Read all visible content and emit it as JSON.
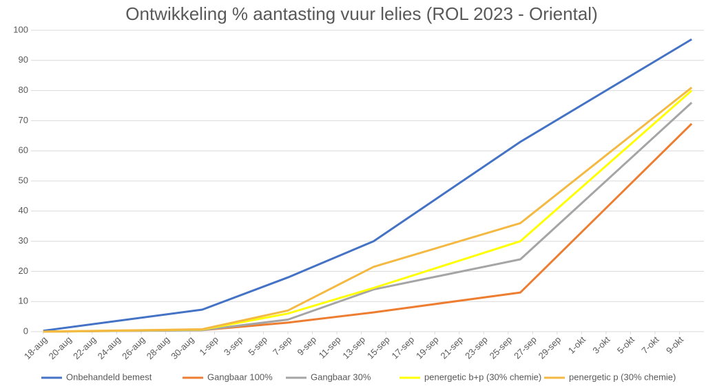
{
  "chart_data": {
    "type": "line",
    "title": "Ontwikkeling % aantasting vuur lelies (ROL 2023 - Oriental)",
    "x": [
      "18-aug",
      "31-aug",
      "7-sep",
      "14-sep",
      "26-sep",
      "10-okt"
    ],
    "xlim": [
      "17-aug",
      "11-okt"
    ],
    "xticks": [
      "18-aug",
      "20-aug",
      "22-aug",
      "24-aug",
      "26-aug",
      "28-aug",
      "30-aug",
      "1-sep",
      "3-sep",
      "5-sep",
      "7-sep",
      "9-sep",
      "11-sep",
      "13-sep",
      "15-sep",
      "17-sep",
      "19-sep",
      "21-sep",
      "23-sep",
      "25-sep",
      "27-sep",
      "29-sep",
      "1-okt",
      "3-okt",
      "5-okt",
      "7-okt",
      "9-okt"
    ],
    "ylim": [
      0,
      100
    ],
    "yticks": [
      0,
      10,
      20,
      30,
      40,
      50,
      60,
      70,
      80,
      90,
      100
    ],
    "grid": true,
    "legend": "bottom",
    "series": [
      {
        "name": "Onbehandeld bemest",
        "color": "#4472c4",
        "values": [
          0.3,
          7.3,
          18,
          30,
          63,
          97
        ]
      },
      {
        "name": "Gangbaar 100%",
        "color": "#ed7d31",
        "values": [
          0,
          0.5,
          3,
          6.4,
          13,
          69
        ]
      },
      {
        "name": "Gangbaar 30%",
        "color": "#a5a5a5",
        "values": [
          0,
          0.5,
          4,
          14,
          24,
          76
        ]
      },
      {
        "name": "penergetic b+p (30% chemie)",
        "color": "#ffff00",
        "values": [
          0,
          0.7,
          6,
          14.5,
          30,
          80
        ]
      },
      {
        "name": "penergetic p (30% chemie)",
        "color": "#f4b942",
        "values": [
          0,
          0.8,
          7,
          21.5,
          36,
          81
        ]
      }
    ]
  }
}
